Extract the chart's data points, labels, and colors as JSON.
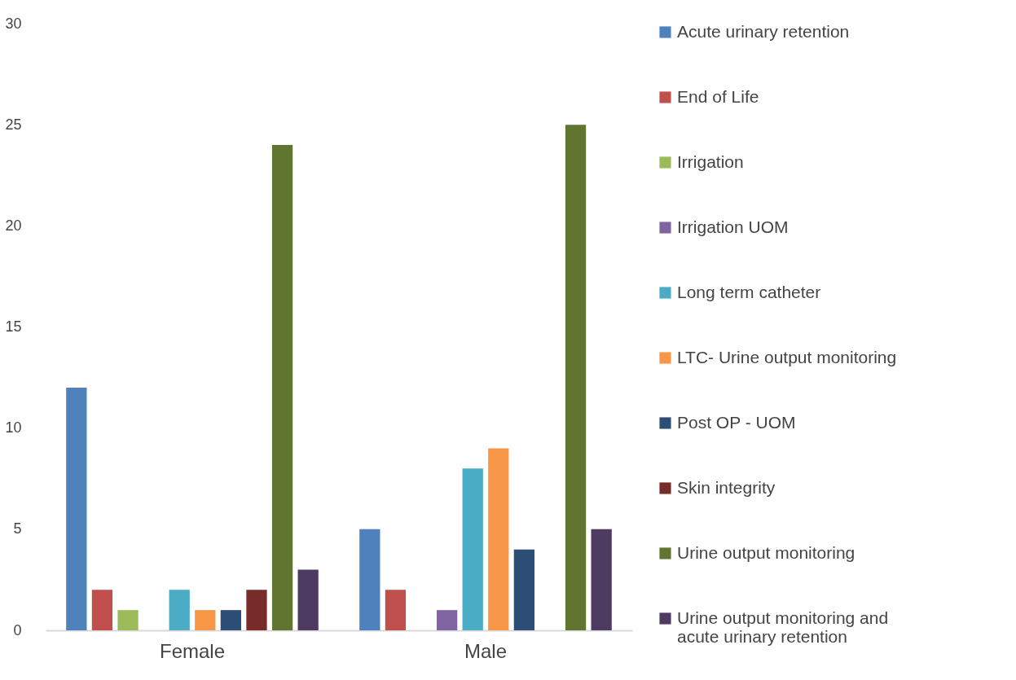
{
  "chart_data": {
    "type": "bar",
    "categories": [
      "Female",
      "Male"
    ],
    "series": [
      {
        "name": "Acute urinary retention",
        "color": "#4f81bd",
        "values": [
          12,
          5
        ]
      },
      {
        "name": "End of Life",
        "color": "#c0504d",
        "values": [
          2,
          2
        ]
      },
      {
        "name": "Irrigation",
        "color": "#9bbb59",
        "values": [
          1,
          null
        ]
      },
      {
        "name": "Irrigation UOM",
        "color": "#8064a2",
        "values": [
          null,
          1
        ]
      },
      {
        "name": "Long term catheter",
        "color": "#4bacc6",
        "values": [
          2,
          8
        ]
      },
      {
        "name": "LTC- Urine output monitoring",
        "color": "#f79646",
        "values": [
          1,
          9
        ]
      },
      {
        "name": "Post OP - UOM",
        "color": "#2c4d75",
        "values": [
          1,
          4
        ]
      },
      {
        "name": "Skin integrity",
        "color": "#772c2a",
        "values": [
          2,
          null
        ]
      },
      {
        "name": "Urine output monitoring",
        "color": "#5f7530",
        "values": [
          24,
          25
        ]
      },
      {
        "name": "Urine output monitoring and acute urinary retention",
        "color": "#4d3b62",
        "values": [
          3,
          5
        ]
      }
    ],
    "ylim": [
      0,
      30
    ],
    "yticks": [
      0,
      5,
      10,
      15,
      20,
      25,
      30
    ],
    "grid": false,
    "legend": "right"
  }
}
